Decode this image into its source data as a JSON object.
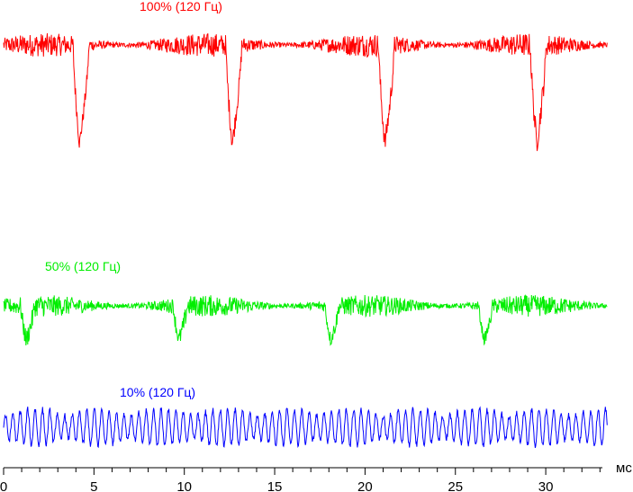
{
  "chart_data": {
    "type": "line",
    "title": "",
    "xlabel": "мс",
    "ylabel": "",
    "xlim": [
      0,
      33.5
    ],
    "x_ticks": [
      "0",
      "5",
      "10",
      "15",
      "20",
      "25",
      "30"
    ],
    "x_tick_values": [
      0,
      5,
      10,
      15,
      20,
      25,
      30
    ],
    "minor_tick_step": 1,
    "grid": false,
    "series": [
      {
        "name": "100% (120 Гц)",
        "color": "#ff0000",
        "baseline": 100,
        "noise": 12,
        "dip_times_ms": [
          4.2,
          12.65,
          21.1,
          29.5
        ],
        "dip_min": 0,
        "dip_width_ms": 0.35
      },
      {
        "name": "50% (120 Гц)",
        "color": "#00ee00",
        "baseline": 100,
        "noise": 22,
        "dip_times_ms": [
          1.25,
          9.7,
          18.1,
          26.6
        ],
        "dip_min": 30,
        "dip_width_ms": 0.3
      },
      {
        "name": "10% (120 Гц)",
        "color": "#0000ff",
        "baseline": 100,
        "oscillation_period_ms": 0.41,
        "oscillation_amplitude": 45
      }
    ]
  }
}
